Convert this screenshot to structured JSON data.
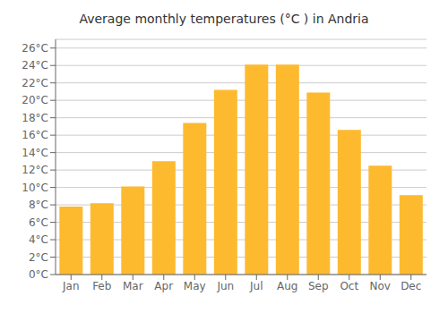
{
  "chart_data": {
    "type": "bar",
    "title": "Average monthly temperatures (°C ) in Andria",
    "categories": [
      "Jan",
      "Feb",
      "Mar",
      "Apr",
      "May",
      "Jun",
      "Jul",
      "Aug",
      "Sep",
      "Oct",
      "Nov",
      "Dec"
    ],
    "values": [
      7.8,
      8.2,
      10.1,
      13.0,
      17.4,
      21.2,
      24.1,
      24.1,
      20.9,
      16.6,
      12.5,
      9.1
    ],
    "color": "#FDBA2F",
    "ylim": [
      0,
      27
    ],
    "yticks": [
      {
        "value": 0,
        "label": "0°C"
      },
      {
        "value": 2,
        "label": "2°C"
      },
      {
        "value": 4,
        "label": "4°C"
      },
      {
        "value": 6,
        "label": "6°C"
      },
      {
        "value": 8,
        "label": "8°C"
      },
      {
        "value": 10,
        "label": "10°C"
      },
      {
        "value": 12,
        "label": "12°C"
      },
      {
        "value": 14,
        "label": "14°C"
      },
      {
        "value": 16,
        "label": "16°C"
      },
      {
        "value": 18,
        "label": "18°C"
      },
      {
        "value": 20,
        "label": "20°C"
      },
      {
        "value": 22,
        "label": "22°C"
      },
      {
        "value": 24,
        "label": "24°C"
      },
      {
        "value": 26,
        "label": "26°C"
      }
    ],
    "grid": true
  }
}
